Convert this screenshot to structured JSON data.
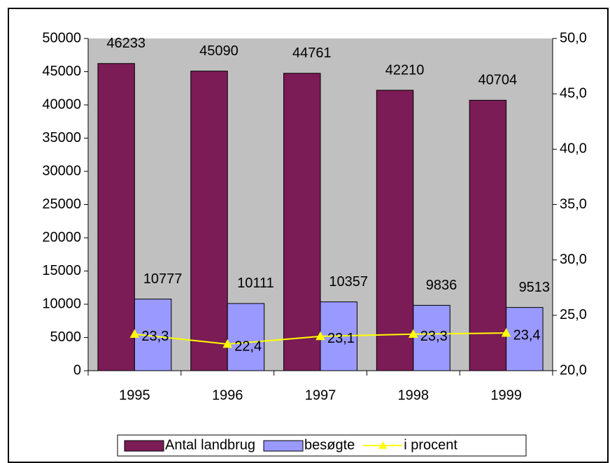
{
  "chart_data": {
    "type": "bar",
    "categories": [
      "1995",
      "1996",
      "1997",
      "1998",
      "1999"
    ],
    "series": [
      {
        "name": "Antal landbrug",
        "type": "bar",
        "axis": "y",
        "color": "#7b1c56",
        "values": [
          46233,
          45090,
          44761,
          42210,
          40704
        ]
      },
      {
        "name": "besøgte",
        "type": "bar",
        "axis": "y",
        "color": "#9999ff",
        "values": [
          10777,
          10111,
          10357,
          9836,
          9513
        ]
      },
      {
        "name": "i procent",
        "type": "line",
        "axis": "y2",
        "color": "#ffff00",
        "values": [
          23.3,
          22.4,
          23.1,
          23.3,
          23.4
        ],
        "value_labels": [
          "23,3",
          "22,4",
          "23,1",
          "23,3",
          "23,4"
        ]
      }
    ],
    "ylim": [
      0,
      50000
    ],
    "yticks": [
      0,
      5000,
      10000,
      15000,
      20000,
      25000,
      30000,
      35000,
      40000,
      45000,
      50000
    ],
    "y2lim": [
      20,
      50
    ],
    "y2ticks": [
      {
        "value": 20,
        "label": "20,0"
      },
      {
        "value": 25,
        "label": "25,0"
      },
      {
        "value": 30,
        "label": "30,0"
      },
      {
        "value": 35,
        "label": "35,0"
      },
      {
        "value": 40,
        "label": "40,0"
      },
      {
        "value": 45,
        "label": "45,0"
      },
      {
        "value": 50,
        "label": "50,0"
      }
    ],
    "plot_background": "#c0c0c0",
    "legend": "bottom",
    "grid": false
  }
}
